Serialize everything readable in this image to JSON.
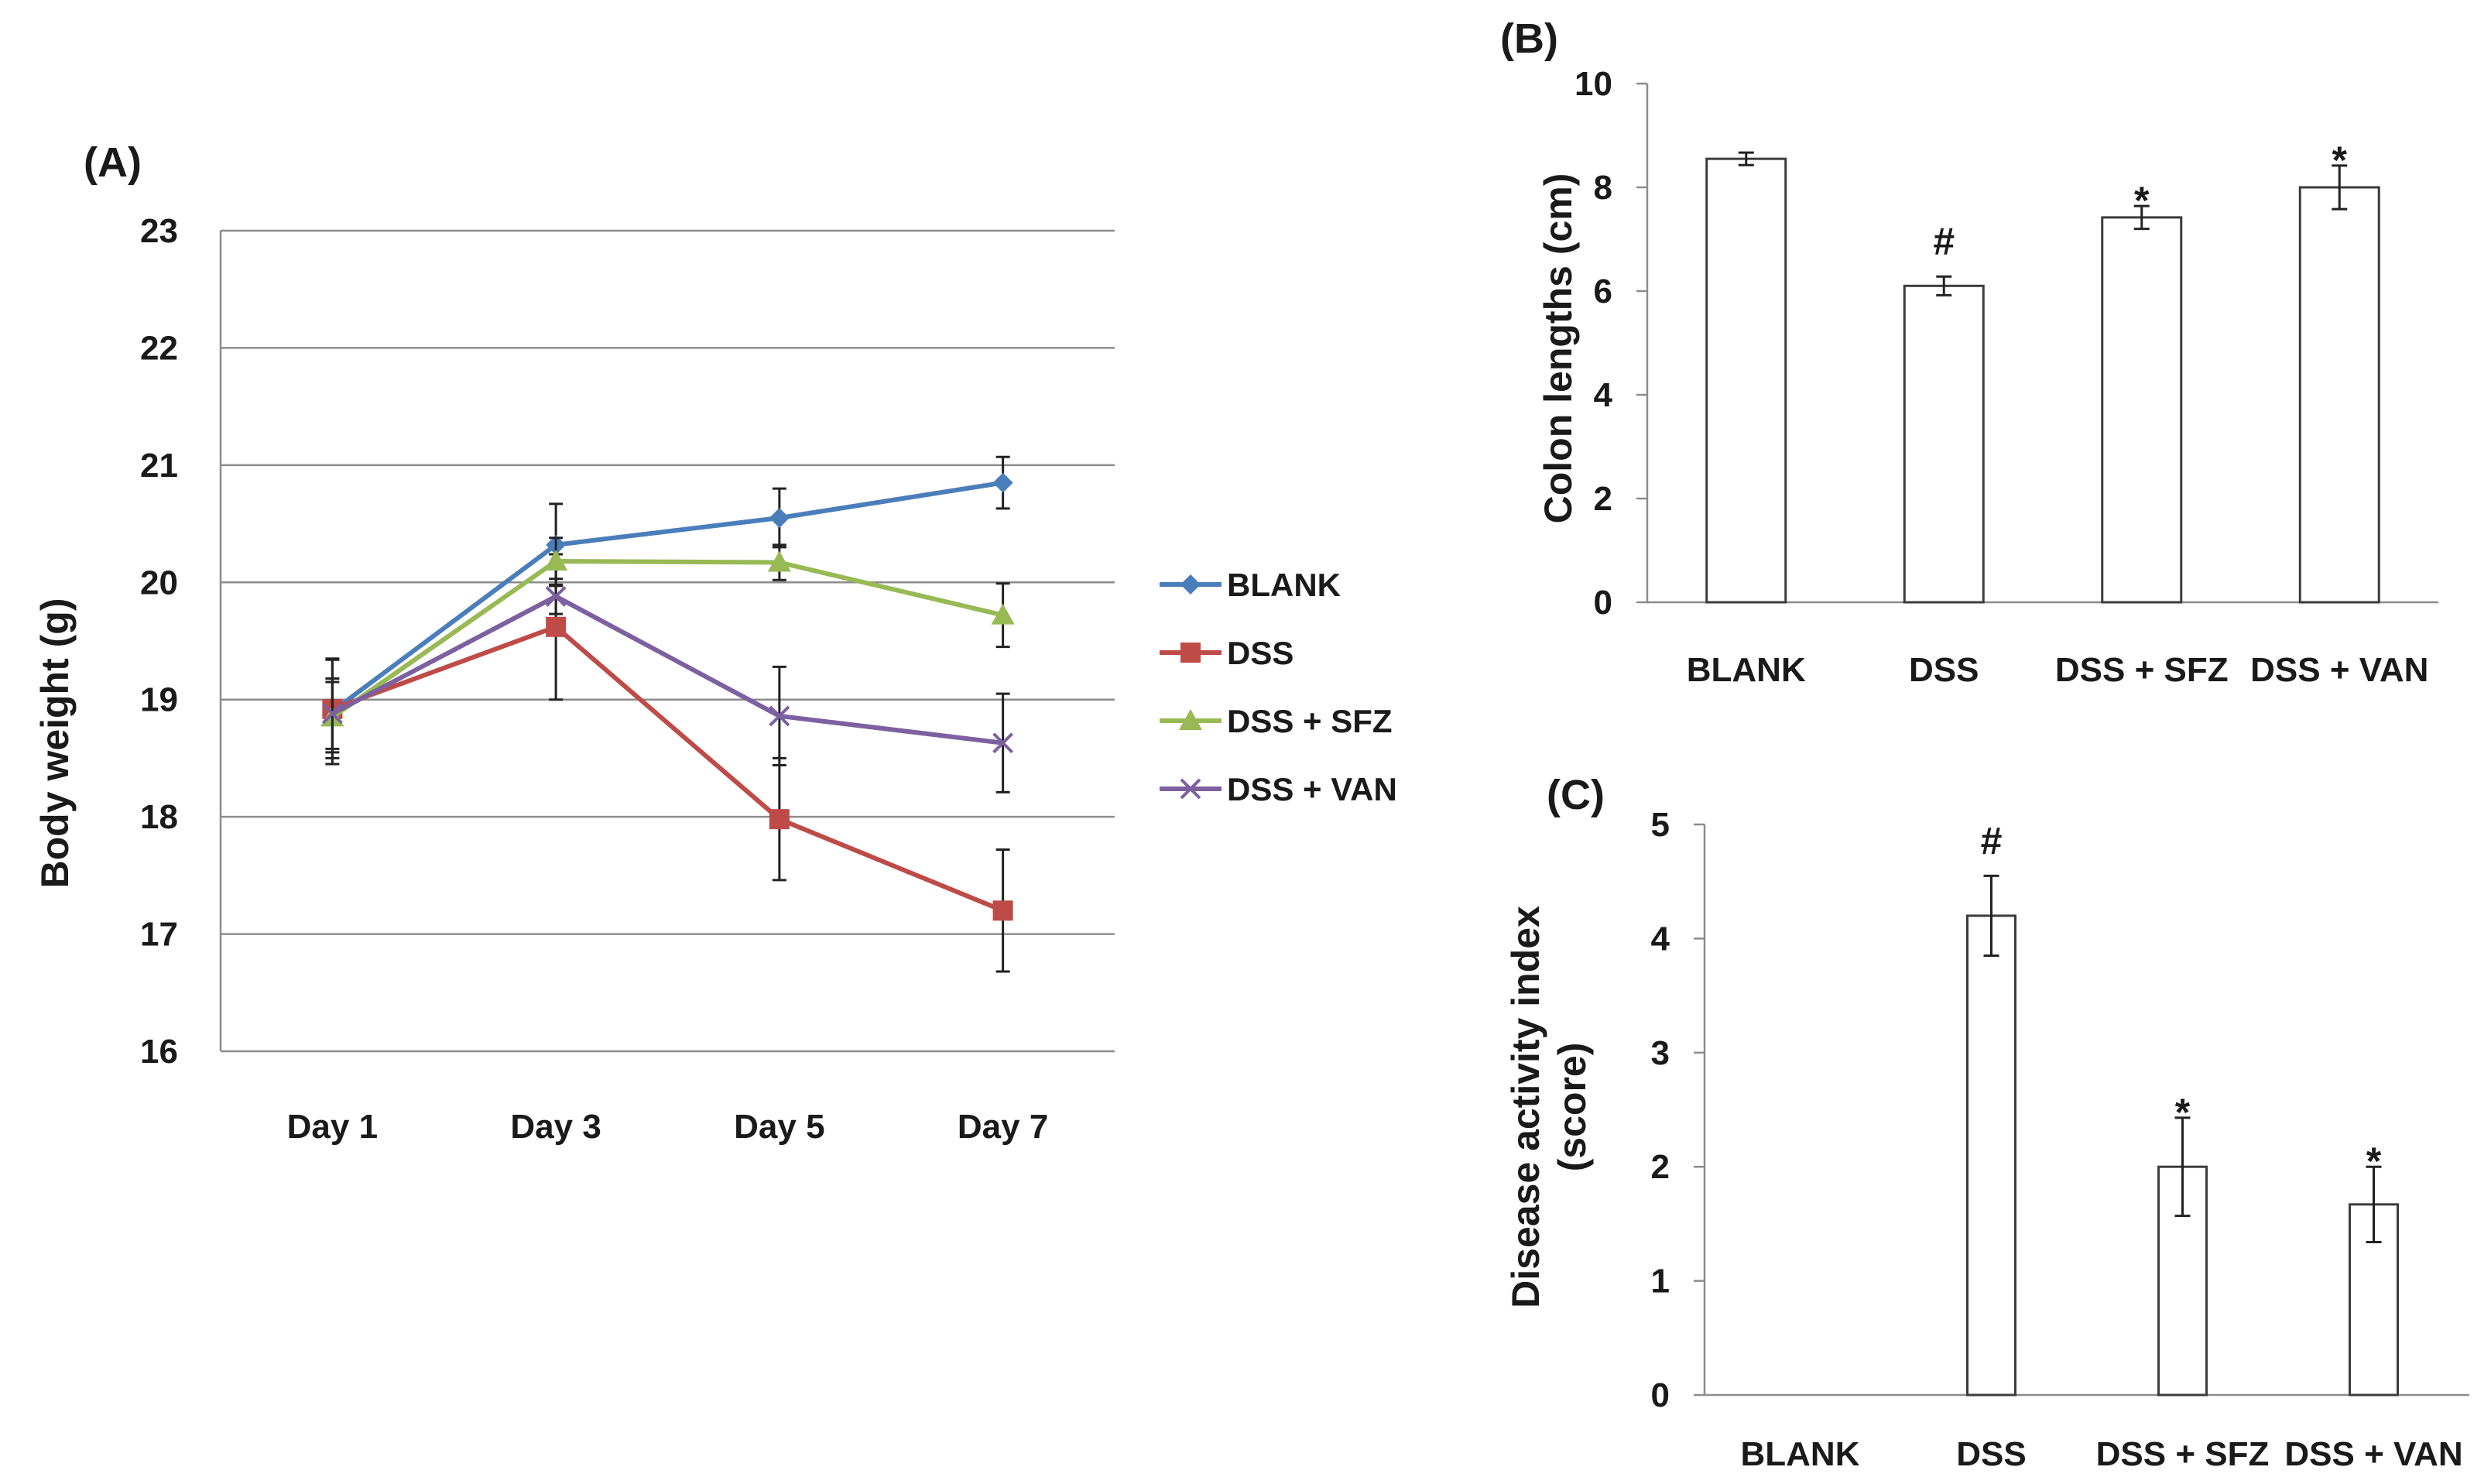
{
  "figure": {
    "panel_a_label": "(A)",
    "panel_b_label": "(B)",
    "panel_c_label": "(C)"
  },
  "chart_data": [
    {
      "id": "A",
      "type": "line",
      "title": "",
      "xlabel": "",
      "ylabel": "Body weight (g)",
      "categories": [
        "Day 1",
        "Day 3",
        "Day 5",
        "Day 7"
      ],
      "ylim": [
        16,
        23
      ],
      "yticks": [
        16,
        17,
        18,
        19,
        20,
        21,
        22,
        23
      ],
      "grid": true,
      "legend": "right",
      "series": [
        {
          "name": "BLANK",
          "color": "#4a7ebb",
          "marker": "diamond",
          "values": [
            18.9,
            20.32,
            20.55,
            20.85
          ],
          "errors": [
            0.45,
            0.35,
            0.25,
            0.22
          ]
        },
        {
          "name": "DSS",
          "color": "#be4b48",
          "marker": "square",
          "values": [
            18.92,
            19.62,
            17.98,
            17.2
          ],
          "errors": [
            0.42,
            0.62,
            0.52,
            0.52
          ]
        },
        {
          "name": "DSS + SFZ",
          "color": "#98b954",
          "marker": "triangle",
          "values": [
            18.85,
            20.18,
            20.17,
            19.72
          ],
          "errors": [
            0.3,
            0.2,
            0.15,
            0.27
          ]
        },
        {
          "name": "DSS + VAN",
          "color": "#7d60a0",
          "marker": "x",
          "values": [
            18.88,
            19.88,
            18.86,
            18.63
          ],
          "errors": [
            0.3,
            0.15,
            0.42,
            0.42
          ]
        }
      ]
    },
    {
      "id": "B",
      "type": "bar",
      "title": "",
      "xlabel": "",
      "ylabel": "Colon lengths (cm)",
      "categories": [
        "BLANK",
        "DSS",
        "DSS + SFZ",
        "DSS + VAN"
      ],
      "values": [
        8.55,
        6.1,
        7.42,
        8.0
      ],
      "errors": [
        0.12,
        0.18,
        0.22,
        0.42
      ],
      "annotations": [
        "",
        "#",
        "*",
        "*"
      ],
      "ylim": [
        0,
        10
      ],
      "yticks": [
        0,
        2,
        4,
        6,
        8,
        10
      ],
      "grid": false
    },
    {
      "id": "C",
      "type": "bar",
      "title": "",
      "xlabel": "",
      "ylabel_lines": [
        "Disease activity index",
        "(score)"
      ],
      "categories": [
        "BLANK",
        "DSS",
        "DSS + SFZ",
        "DSS + VAN"
      ],
      "values": [
        0,
        4.2,
        2.0,
        1.67
      ],
      "errors": [
        0,
        0.35,
        0.43,
        0.33
      ],
      "annotations": [
        "",
        "#",
        "*",
        "*"
      ],
      "ylim": [
        0,
        5
      ],
      "yticks": [
        0,
        1,
        2,
        3,
        4,
        5
      ],
      "grid": false
    }
  ]
}
